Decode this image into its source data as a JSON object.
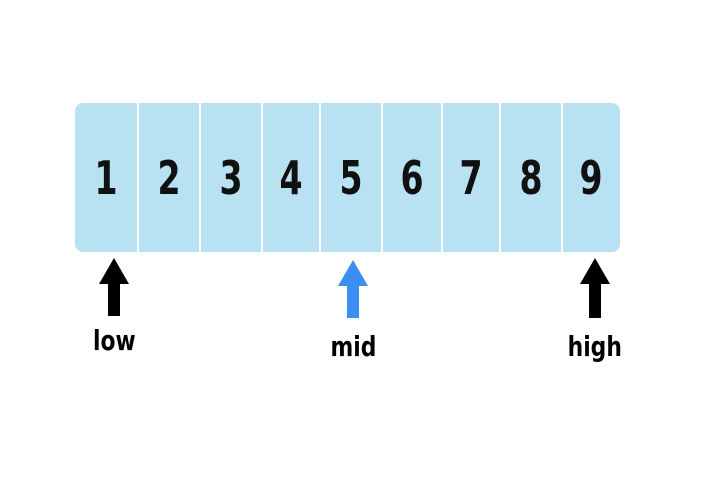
{
  "array": {
    "values": [
      "1",
      "2",
      "3",
      "4",
      "5",
      "6",
      "7",
      "8",
      "9"
    ],
    "fill_color": "#b8e2f2"
  },
  "pointers": {
    "low": {
      "label": "low",
      "color": "#000000"
    },
    "mid": {
      "label": "mid",
      "color": "#3a8ff0"
    },
    "high": {
      "label": "high",
      "color": "#000000"
    }
  }
}
